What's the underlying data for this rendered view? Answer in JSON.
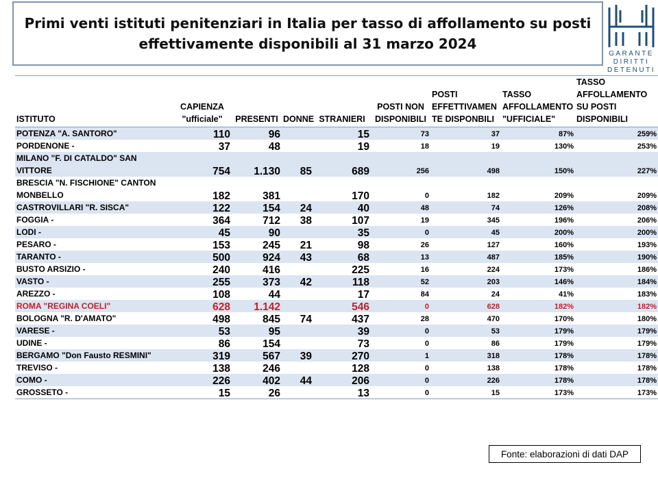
{
  "title": {
    "line1": "Primi venti istituti penitenziari in Italia per tasso di affollamento su posti",
    "line2": "effettivamente disponibili al 31 marzo 2024"
  },
  "logo": {
    "line1": "GARANTE",
    "line2": "DIRITTI",
    "line3": "DETENUTI",
    "color": "#1f4e79"
  },
  "table": {
    "headers": {
      "istituto": "ISTITUTO",
      "capienza": [
        "CAPIENZA",
        "\"ufficiale\""
      ],
      "presenti": "PRESENTI",
      "donne": "DONNE",
      "stranieri": "STRANIERI",
      "non_disp": [
        "POSTI NON",
        "DISPONIBILI"
      ],
      "eff_disp": [
        "POSTI",
        "EFFETTIVAMEN",
        "TE DISPONBILI"
      ],
      "tasso_uff": [
        "TASSO",
        "AFFOLLAMENTO",
        "\"UFFICIALE\""
      ],
      "tasso_disp": [
        "TASSO",
        "AFFOLLAMENTO",
        "SU POSTI",
        "DISPONIBILI"
      ]
    },
    "rows": [
      {
        "name": "POTENZA \"A. SANTORO\"",
        "capienza": "110",
        "presenti": "96",
        "donne": "",
        "stranieri": "15",
        "non_disp": "73",
        "eff_disp": "37",
        "tasso_uff": "87%",
        "tasso_disp": "259%"
      },
      {
        "name": "PORDENONE -",
        "capienza": "37",
        "presenti": "48",
        "donne": "",
        "stranieri": "19",
        "non_disp": "18",
        "eff_disp": "19",
        "tasso_uff": "130%",
        "tasso_disp": "253%"
      },
      {
        "name": "MILANO \"F. DI CATALDO\" SAN VITTORE",
        "capienza": "754",
        "presenti": "1.130",
        "donne": "85",
        "stranieri": "689",
        "non_disp": "256",
        "eff_disp": "498",
        "tasso_uff": "150%",
        "tasso_disp": "227%",
        "tall": true
      },
      {
        "name": "BRESCIA \"N. FISCHIONE\" CANTON MONBELLO",
        "capienza": "182",
        "presenti": "381",
        "donne": "",
        "stranieri": "170",
        "non_disp": "0",
        "eff_disp": "182",
        "tasso_uff": "209%",
        "tasso_disp": "209%",
        "tall": true
      },
      {
        "name": "CASTROVILLARI \"R. SISCA\"",
        "capienza": "122",
        "presenti": "154",
        "donne": "24",
        "stranieri": "40",
        "non_disp": "48",
        "eff_disp": "74",
        "tasso_uff": "126%",
        "tasso_disp": "208%"
      },
      {
        "name": "FOGGIA -",
        "capienza": "364",
        "presenti": "712",
        "donne": "38",
        "stranieri": "107",
        "non_disp": "19",
        "eff_disp": "345",
        "tasso_uff": "196%",
        "tasso_disp": "206%"
      },
      {
        "name": "LODI -",
        "capienza": "45",
        "presenti": "90",
        "donne": "",
        "stranieri": "35",
        "non_disp": "0",
        "eff_disp": "45",
        "tasso_uff": "200%",
        "tasso_disp": "200%"
      },
      {
        "name": "PESARO -",
        "capienza": "153",
        "presenti": "245",
        "donne": "21",
        "stranieri": "98",
        "non_disp": "26",
        "eff_disp": "127",
        "tasso_uff": "160%",
        "tasso_disp": "193%"
      },
      {
        "name": "TARANTO -",
        "capienza": "500",
        "presenti": "924",
        "donne": "43",
        "stranieri": "68",
        "non_disp": "13",
        "eff_disp": "487",
        "tasso_uff": "185%",
        "tasso_disp": "190%"
      },
      {
        "name": "BUSTO ARSIZIO -",
        "capienza": "240",
        "presenti": "416",
        "donne": "",
        "stranieri": "225",
        "non_disp": "16",
        "eff_disp": "224",
        "tasso_uff": "173%",
        "tasso_disp": "186%"
      },
      {
        "name": "VASTO -",
        "capienza": "255",
        "presenti": "373",
        "donne": "42",
        "stranieri": "118",
        "non_disp": "52",
        "eff_disp": "203",
        "tasso_uff": "146%",
        "tasso_disp": "184%"
      },
      {
        "name": "AREZZO -",
        "capienza": "108",
        "presenti": "44",
        "donne": "",
        "stranieri": "17",
        "non_disp": "84",
        "eff_disp": "24",
        "tasso_uff": "41%",
        "tasso_disp": "183%"
      },
      {
        "name": "ROMA \"REGINA COELI\"",
        "capienza": "628",
        "presenti": "1.142",
        "donne": "",
        "stranieri": "546",
        "non_disp": "0",
        "eff_disp": "628",
        "tasso_uff": "182%",
        "tasso_disp": "182%",
        "highlight": true
      },
      {
        "name": "BOLOGNA \"R. D'AMATO\"",
        "capienza": "498",
        "presenti": "845",
        "donne": "74",
        "stranieri": "437",
        "non_disp": "28",
        "eff_disp": "470",
        "tasso_uff": "170%",
        "tasso_disp": "180%"
      },
      {
        "name": "VARESE -",
        "capienza": "53",
        "presenti": "95",
        "donne": "",
        "stranieri": "39",
        "non_disp": "0",
        "eff_disp": "53",
        "tasso_uff": "179%",
        "tasso_disp": "179%"
      },
      {
        "name": "UDINE -",
        "capienza": "86",
        "presenti": "154",
        "donne": "",
        "stranieri": "73",
        "non_disp": "0",
        "eff_disp": "86",
        "tasso_uff": "179%",
        "tasso_disp": "179%"
      },
      {
        "name": "BERGAMO \"Don Fausto RESMINI\"",
        "capienza": "319",
        "presenti": "567",
        "donne": "39",
        "stranieri": "270",
        "non_disp": "1",
        "eff_disp": "318",
        "tasso_uff": "178%",
        "tasso_disp": "178%"
      },
      {
        "name": "TREVISO -",
        "capienza": "138",
        "presenti": "246",
        "donne": "",
        "stranieri": "128",
        "non_disp": "0",
        "eff_disp": "138",
        "tasso_uff": "178%",
        "tasso_disp": "178%"
      },
      {
        "name": "COMO -",
        "capienza": "226",
        "presenti": "402",
        "donne": "44",
        "stranieri": "206",
        "non_disp": "0",
        "eff_disp": "226",
        "tasso_uff": "178%",
        "tasso_disp": "178%"
      },
      {
        "name": "GROSSETO -",
        "capienza": "15",
        "presenti": "26",
        "donne": "",
        "stranieri": "13",
        "non_disp": "0",
        "eff_disp": "15",
        "tasso_uff": "173%",
        "tasso_disp": "173%"
      }
    ]
  },
  "source": "Fonte: elaborazioni di dati DAP",
  "colors": {
    "row_band": "#dbe4f1",
    "highlight_text": "#c0202a",
    "border": "#7aa0c8"
  }
}
